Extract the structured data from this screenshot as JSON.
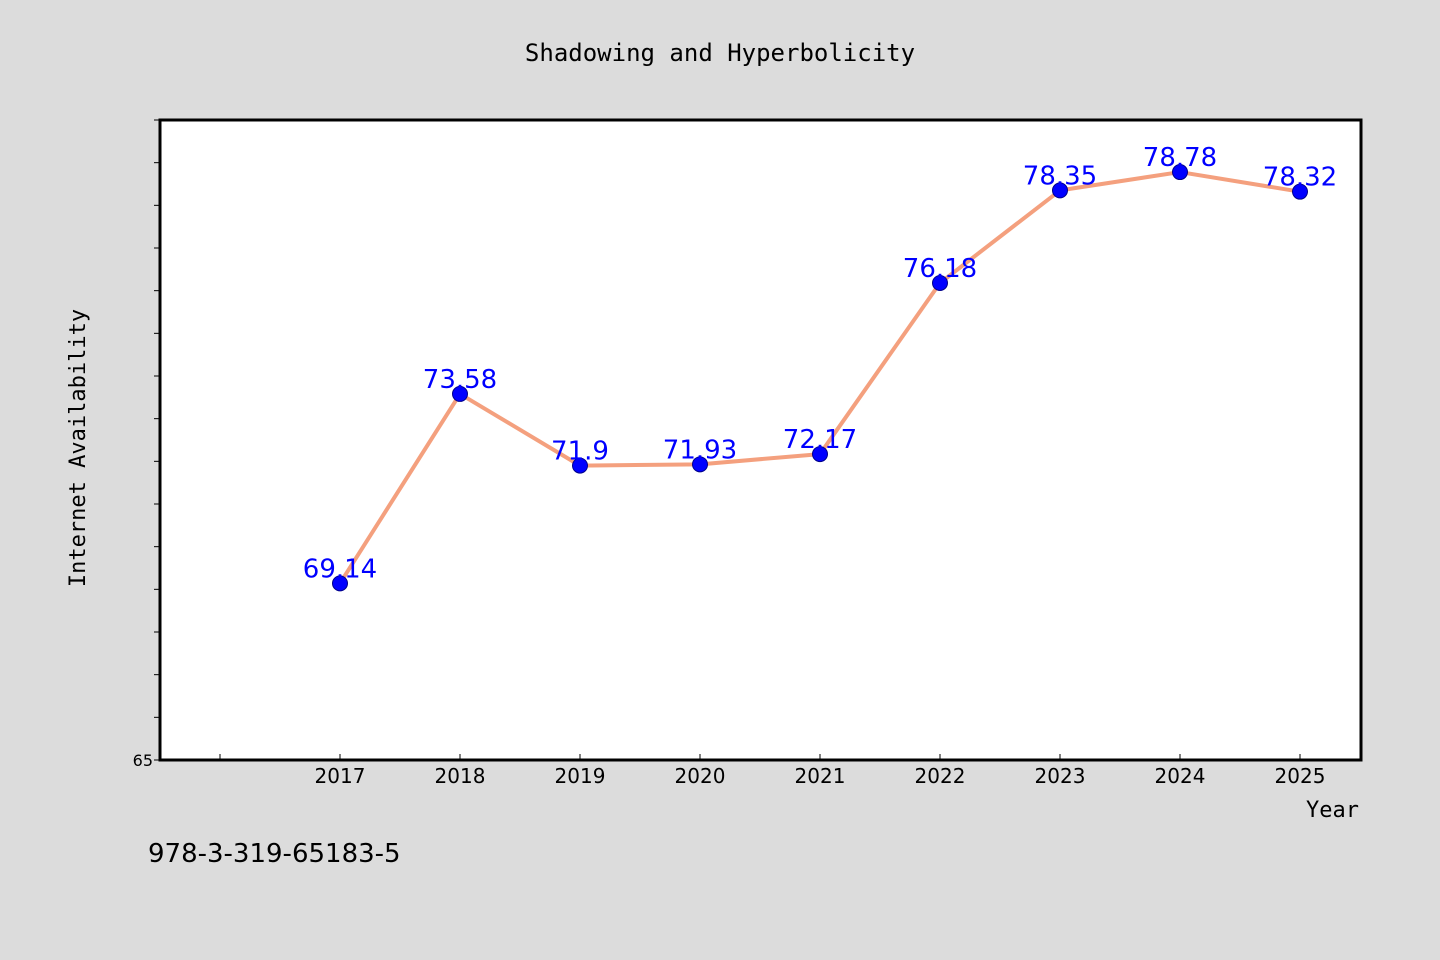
{
  "colors": {
    "background": "#dcdcdc",
    "plot_background": "#ffffff",
    "frame": "#000000",
    "line": "#f4a07e",
    "marker": "#0000ff",
    "marker_edge": "#00008b",
    "data_label": "#0000ff",
    "text": "#000000"
  },
  "chart_data": {
    "type": "line",
    "title": "Shadowing and Hyperbolicity",
    "xlabel": "Year",
    "ylabel": "Internet Availability",
    "categories": [
      "2017",
      "2018",
      "2019",
      "2020",
      "2021",
      "2022",
      "2023",
      "2024",
      "2025"
    ],
    "series": [
      {
        "values": [
          69.14,
          73.58,
          71.9,
          71.93,
          72.17,
          76.18,
          78.35,
          78.78,
          78.32
        ],
        "labels": [
          "69.14",
          "73.58",
          "71.9",
          "71.93",
          "72.17",
          "76.18",
          "78.35",
          "78.78",
          "78.32"
        ],
        "color": "#f4a07e",
        "marker_color": "#0000ff"
      }
    ],
    "ylim": [
      65,
      80
    ],
    "y_tick_labels": [
      "65"
    ],
    "y_minor_tick_step": 1,
    "grid": false,
    "legend": "none"
  },
  "footer_text": "978-3-319-65183-5"
}
